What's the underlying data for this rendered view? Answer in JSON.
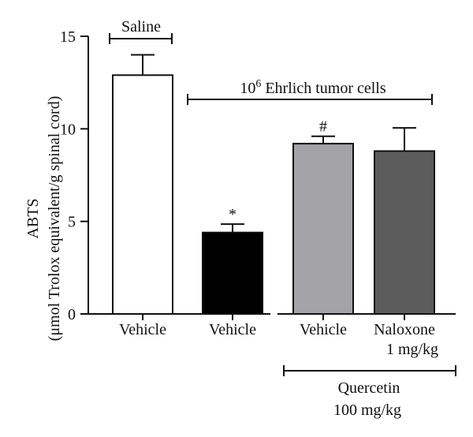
{
  "chart_data": {
    "type": "bar",
    "ylabel_line1": "ABTS",
    "ylabel_line2": "(μmol Trolox equivalent/g spinal cord)",
    "ylim": [
      0,
      15
    ],
    "yticks": [
      0,
      5,
      10,
      15
    ],
    "categories": [
      "Vehicle",
      "Vehicle",
      "Vehicle",
      "Naloxone"
    ],
    "category_sublabels": [
      "",
      "",
      "",
      "1 mg/kg"
    ],
    "values": [
      12.9,
      4.4,
      9.2,
      8.8
    ],
    "errors": [
      1.1,
      0.45,
      0.4,
      1.25
    ],
    "bar_colors": [
      "#ffffff",
      "#000000",
      "#a3a3a8",
      "#5c5c5c"
    ],
    "significance": [
      "",
      "*",
      "#",
      ""
    ],
    "groups": [
      {
        "label": "Saline",
        "label_sup": "",
        "label_rest": ""
      },
      {
        "label": "10",
        "label_sup": "6",
        "label_rest": " Ehrlich tumor cells"
      }
    ],
    "treatment_group": {
      "label_line1": "Quercetin",
      "label_line2": "100 mg/kg"
    }
  }
}
